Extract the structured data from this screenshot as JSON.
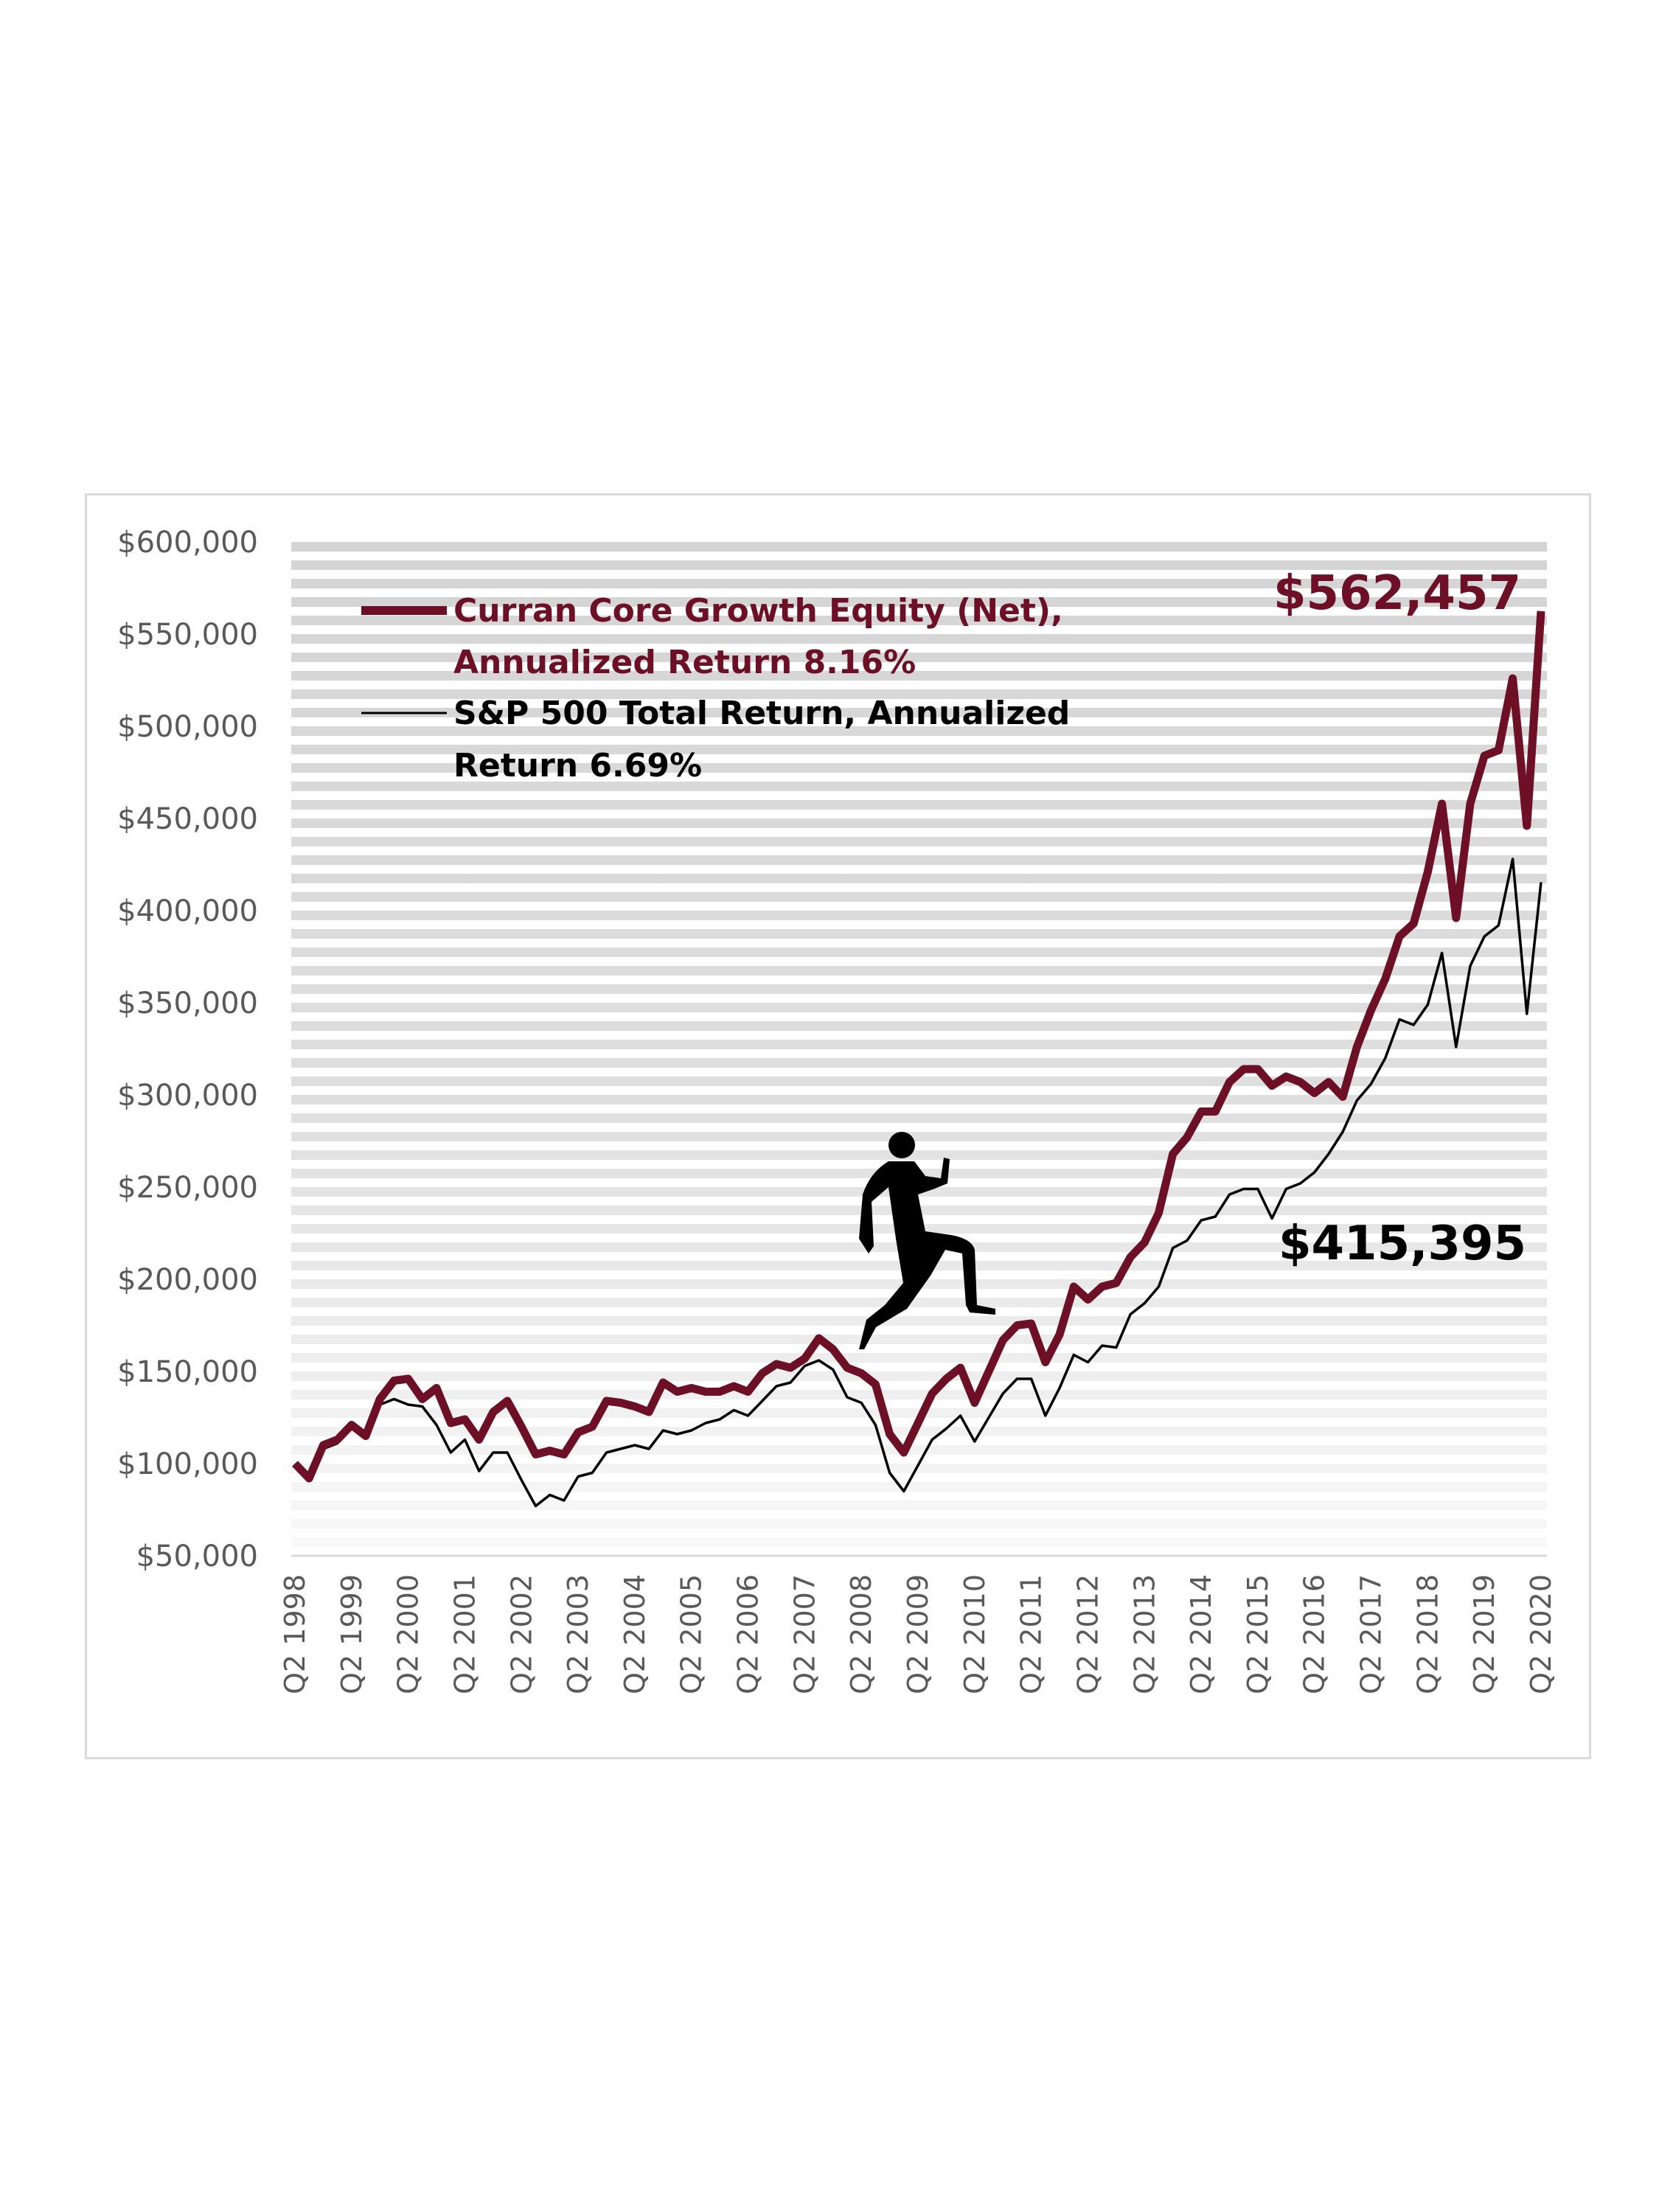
{
  "chart_data": {
    "type": "line",
    "title": "",
    "xlabel": "",
    "ylabel": "",
    "ylim": [
      50000,
      600000
    ],
    "y_ticks": [
      "$50,000",
      "$100,000",
      "$150,000",
      "$200,000",
      "$250,000",
      "$300,000",
      "$350,000",
      "$400,000",
      "$450,000",
      "$500,000",
      "$550,000",
      "$600,000"
    ],
    "y_tick_values": [
      50000,
      100000,
      150000,
      200000,
      250000,
      300000,
      350000,
      400000,
      450000,
      500000,
      550000,
      600000
    ],
    "x_tick_labels": [
      "Q2 1998",
      "Q2 1999",
      "Q2 2000",
      "Q2 2001",
      "Q2 2002",
      "Q2 2003",
      "Q2 2004",
      "Q2 2005",
      "Q2 2006",
      "Q2 2007",
      "Q2 2008",
      "Q2 2009",
      "Q2 2010",
      "Q2 2011",
      "Q2 2012",
      "Q2 2013",
      "Q2 2014",
      "Q2 2015",
      "Q2 2016",
      "Q2 2017",
      "Q2 2018",
      "Q2 2019",
      "Q2 2020"
    ],
    "x_note": "quarterly from Q2 1998 to Q2 2020 (89 points)",
    "grid": "horizontal stripes",
    "legend_placement": "top-left",
    "series": [
      {
        "name": "Curran Core Growth Equity (Net),",
        "name_line2": "Annualized Return 8.16%",
        "color": "#6d0f25",
        "values": [
          100000,
          92000,
          110000,
          113000,
          121000,
          115000,
          135000,
          145000,
          146000,
          135000,
          141000,
          122000,
          124000,
          113000,
          128000,
          134000,
          120000,
          105000,
          107000,
          105000,
          117000,
          120000,
          134000,
          133000,
          131000,
          128000,
          144000,
          139000,
          141000,
          139000,
          139000,
          142000,
          139000,
          149000,
          154000,
          152000,
          157000,
          168000,
          162000,
          152000,
          149000,
          143000,
          116000,
          106000,
          122000,
          138000,
          146000,
          152000,
          133000,
          150000,
          167000,
          175000,
          176000,
          155000,
          170000,
          196000,
          189000,
          196000,
          198000,
          212000,
          220000,
          236000,
          268000,
          277000,
          291000,
          291000,
          307000,
          314000,
          314000,
          305000,
          310000,
          307000,
          301000,
          307000,
          299000,
          326000,
          346000,
          363000,
          386000,
          393000,
          421000,
          458000,
          396000,
          458000,
          484000,
          487000,
          526000,
          446000,
          562457
        ]
      },
      {
        "name": "S&P 500 Total Return, Annualized",
        "name_line2": "Return 6.69%",
        "color": "#000000",
        "values": [
          100000,
          91000,
          108000,
          111000,
          122000,
          114000,
          132000,
          135000,
          132000,
          131000,
          121000,
          106000,
          113000,
          96000,
          106000,
          106000,
          91000,
          77000,
          83000,
          80000,
          93000,
          95000,
          106000,
          108000,
          110000,
          108000,
          118000,
          116000,
          118000,
          122000,
          124000,
          129000,
          126000,
          134000,
          142000,
          144000,
          153000,
          156000,
          151000,
          136000,
          133000,
          121000,
          95000,
          85000,
          99000,
          113000,
          119000,
          126000,
          112000,
          125000,
          138000,
          146000,
          146000,
          126000,
          141000,
          159000,
          155000,
          164000,
          163000,
          181000,
          187000,
          196000,
          217000,
          221000,
          232000,
          234000,
          246000,
          249000,
          249000,
          233000,
          249000,
          252000,
          258000,
          268000,
          280000,
          297000,
          306000,
          320000,
          341000,
          338000,
          349000,
          377000,
          326000,
          370000,
          386000,
          392000,
          428000,
          344000,
          415395
        ]
      }
    ],
    "annotations": {
      "curran_final": "$562,457",
      "sp_final": "$415,395"
    }
  }
}
